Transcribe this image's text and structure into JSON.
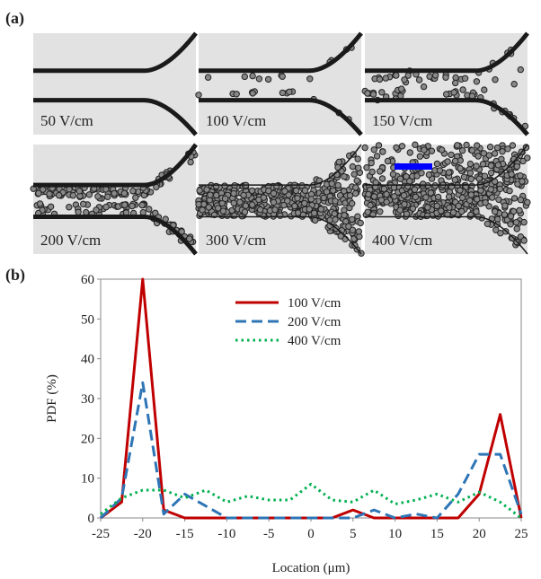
{
  "panel_a": {
    "label": "(a)",
    "captions": [
      "50 V/cm",
      "100 V/cm",
      "150 V/cm",
      "200 V/cm",
      "300 V/cm",
      "400 V/cm"
    ]
  },
  "chart_data": {
    "type": "line",
    "panel_label": "(b)",
    "x_label": "Location  (μm)",
    "y_label": "PDF (%)",
    "x": [
      -25,
      -22.5,
      -20,
      -17.5,
      -15,
      -12.5,
      -10,
      -7.5,
      -5,
      -2.5,
      0,
      2.5,
      5,
      7.5,
      10,
      12.5,
      15,
      17.5,
      20,
      22.5,
      25
    ],
    "series": [
      {
        "name": "100 V/cm",
        "color": "#c00000",
        "line_style": "solid",
        "values": [
          0,
          4,
          60,
          2,
          0,
          0,
          0,
          0,
          0,
          0,
          0,
          0,
          2,
          0,
          0,
          0,
          0,
          0,
          6,
          26,
          0
        ]
      },
      {
        "name": "200 V/cm",
        "color": "#2e75b6",
        "line_style": "dashed",
        "values": [
          0,
          5,
          34,
          1,
          6,
          3,
          0,
          0,
          0,
          0,
          0,
          0,
          0,
          2,
          0,
          1,
          0,
          6,
          16,
          16,
          1
        ]
      },
      {
        "name": "400 V/cm",
        "color": "#00b050",
        "line_style": "dotted",
        "values": [
          1,
          5,
          7,
          7,
          5,
          7,
          4,
          5.5,
          4.5,
          4.5,
          8.5,
          4.5,
          4,
          7,
          3.5,
          4.5,
          6,
          4,
          6.5,
          4,
          0
        ]
      }
    ],
    "xlim": [
      -25,
      25
    ],
    "xticks": [
      -25,
      -20,
      -15,
      -10,
      -5,
      0,
      5,
      10,
      15,
      20,
      25
    ],
    "ylim": [
      0,
      60
    ],
    "yticks": [
      0,
      10,
      20,
      30,
      40,
      50,
      60
    ],
    "grid": false,
    "legend": "top"
  }
}
